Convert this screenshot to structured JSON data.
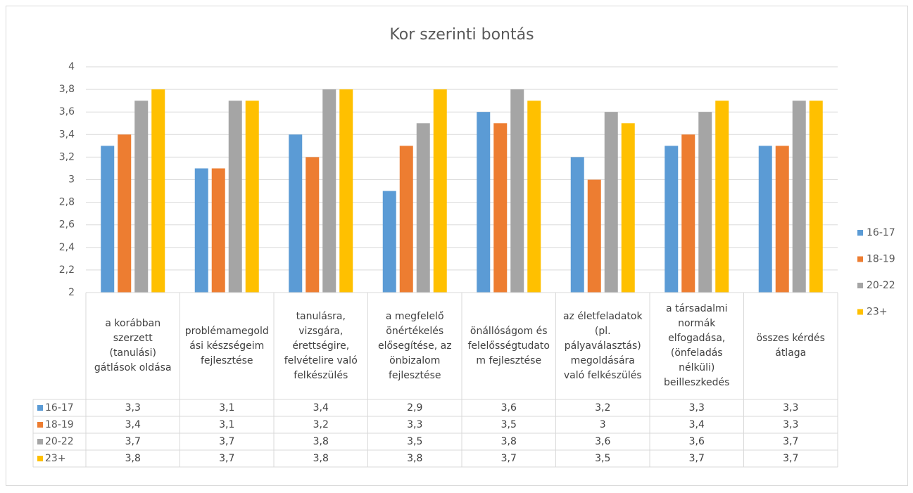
{
  "chart_data": {
    "type": "bar",
    "title": "Kor szerinti bontás",
    "categories": [
      "a korábban szerzett (tanulási) gátlások oldása",
      "problémamegoldási készségeim fejlesztése",
      "tanulásra, vizsgára, érettségire, felvételire való felkészülés",
      "a megfelelő önértékelés elősegítése, az önbizalom fejlesztése",
      "önállóságom és felelősségtudatom fejlesztése",
      "az életfeladatok (pl. pályaválasztás) megoldására való felkészülés",
      "a társadalmi normák elfogadása, (önfeladás nélküli) beilleszkedés",
      "összes kérdés átlaga"
    ],
    "series": [
      {
        "name": "16-17",
        "color": "#5b9bd5",
        "values": [
          3.3,
          3.1,
          3.4,
          2.9,
          3.6,
          3.2,
          3.3,
          3.3
        ],
        "value_labels": [
          "3,3",
          "3,1",
          "3,4",
          "2,9",
          "3,6",
          "3,2",
          "3,3",
          "3,3"
        ]
      },
      {
        "name": "18-19",
        "color": "#ed7d31",
        "values": [
          3.4,
          3.1,
          3.2,
          3.3,
          3.5,
          3,
          3.4,
          3.3
        ],
        "value_labels": [
          "3,4",
          "3,1",
          "3,2",
          "3,3",
          "3,5",
          "3",
          "3,4",
          "3,3"
        ]
      },
      {
        "name": "20-22",
        "color": "#a5a5a5",
        "values": [
          3.7,
          3.7,
          3.8,
          3.5,
          3.8,
          3.6,
          3.6,
          3.7
        ],
        "value_labels": [
          "3,7",
          "3,7",
          "3,8",
          "3,5",
          "3,8",
          "3,6",
          "3,6",
          "3,7"
        ]
      },
      {
        "name": "23+",
        "color": "#ffc000",
        "values": [
          3.8,
          3.7,
          3.8,
          3.8,
          3.7,
          3.5,
          3.7,
          3.7
        ],
        "value_labels": [
          "3,8",
          "3,7",
          "3,8",
          "3,8",
          "3,7",
          "3,5",
          "3,7",
          "3,7"
        ]
      }
    ],
    "ylim": [
      2,
      4
    ],
    "yticks": [
      2,
      {
        "value": 2.2,
        "label": "2,2"
      },
      {
        "value": 2.4,
        "label": "2,4"
      },
      {
        "value": 2.6,
        "label": "2,6"
      },
      {
        "value": 2.8,
        "label": "2,8"
      },
      3,
      {
        "value": 3.2,
        "label": "3,2"
      },
      {
        "value": 3.4,
        "label": "3,4"
      },
      {
        "value": 3.6,
        "label": "3,6"
      },
      {
        "value": 3.8,
        "label": "3,8"
      },
      4
    ],
    "grid": true,
    "legend": "right"
  }
}
